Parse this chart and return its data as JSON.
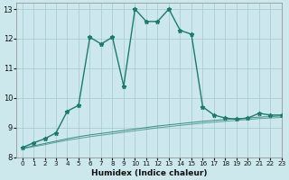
{
  "title": "",
  "xlabel": "Humidex (Indice chaleur)",
  "bg_color": "#cce8ec",
  "grid_color": "#aacdd4",
  "line_color": "#1e7a6a",
  "xlim": [
    -0.5,
    23
  ],
  "ylim": [
    8,
    13.2
  ],
  "x_ticks": [
    0,
    1,
    2,
    3,
    4,
    5,
    6,
    7,
    8,
    9,
    10,
    11,
    12,
    13,
    14,
    15,
    16,
    17,
    18,
    19,
    20,
    21,
    22,
    23
  ],
  "y_ticks": [
    8,
    9,
    10,
    11,
    12,
    13
  ],
  "s1_x": [
    0,
    1,
    2,
    3,
    4,
    5,
    6,
    7,
    8,
    9,
    10,
    11,
    12,
    13,
    14,
    15,
    16,
    17,
    18,
    19,
    20,
    21,
    22,
    23
  ],
  "s1_y": [
    8.32,
    8.48,
    8.62,
    8.82,
    9.55,
    9.75,
    12.05,
    11.82,
    12.05,
    10.4,
    13.0,
    12.58,
    12.58,
    13.0,
    12.28,
    12.15,
    9.7,
    9.42,
    9.32,
    9.28,
    9.32,
    9.48,
    9.42,
    9.42
  ],
  "s2_x": [
    0,
    1,
    2,
    3,
    4,
    5,
    6,
    7,
    8,
    9,
    10,
    11,
    12,
    13,
    14,
    15,
    16,
    17,
    18,
    19,
    20,
    21,
    22,
    23
  ],
  "s2_y": [
    8.3,
    8.38,
    8.46,
    8.54,
    8.62,
    8.69,
    8.75,
    8.8,
    8.85,
    8.9,
    8.95,
    9.0,
    9.05,
    9.09,
    9.13,
    9.17,
    9.21,
    9.24,
    9.27,
    9.3,
    9.32,
    9.35,
    9.37,
    9.39
  ],
  "s3_x": [
    0,
    1,
    2,
    3,
    4,
    5,
    6,
    7,
    8,
    9,
    10,
    11,
    12,
    13,
    14,
    15,
    16,
    17,
    18,
    19,
    20,
    21,
    22,
    23
  ],
  "s3_y": [
    8.28,
    8.35,
    8.42,
    8.5,
    8.57,
    8.63,
    8.69,
    8.74,
    8.79,
    8.84,
    8.89,
    8.94,
    8.99,
    9.03,
    9.07,
    9.11,
    9.15,
    9.18,
    9.21,
    9.24,
    9.27,
    9.3,
    9.32,
    9.34
  ]
}
